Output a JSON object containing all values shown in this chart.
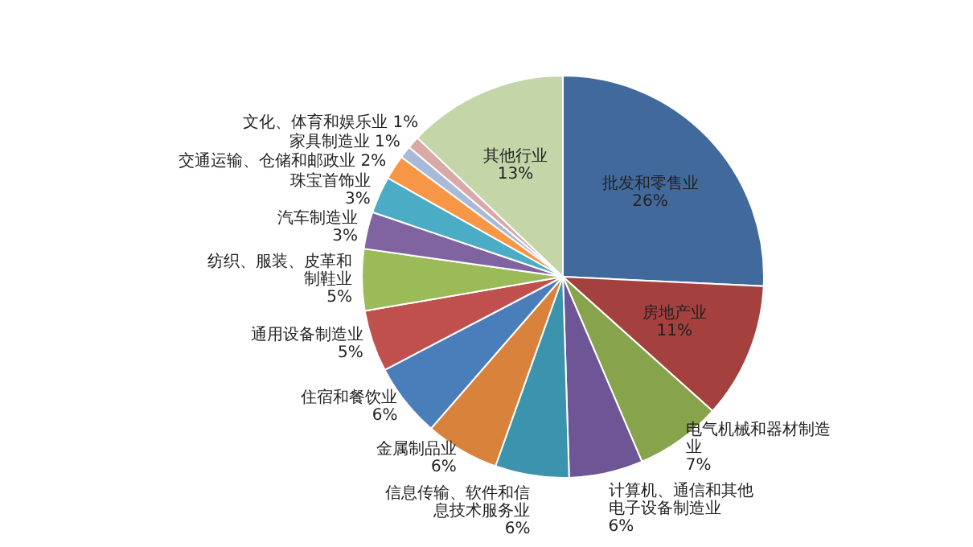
{
  "chart_data": {
    "type": "pie",
    "categories": [
      "批发和零售业",
      "房地产业",
      "电气机械和器材制造业",
      "计算机、通信和其他电子设备制造业",
      "信息传输、软件和信息技术服务业",
      "金属制品业",
      "住宿和餐饮业",
      "通用设备制造业",
      "纺织、服装、皮革和制鞋业",
      "汽车制造业",
      "珠宝首饰业",
      "交通运输、仓储和邮政业",
      "家具制造业",
      "文化、体育和娱乐业",
      "其他行业"
    ],
    "values": [
      26,
      11,
      7,
      6,
      6,
      6,
      6,
      5,
      5,
      3,
      3,
      2,
      1,
      1,
      13
    ],
    "value_labels": [
      "26%",
      "11%",
      "7%",
      "6%",
      "6%",
      "6%",
      "6%",
      "5%",
      "5%",
      "3%",
      "3%",
      "2%",
      "1%",
      "1%",
      "13%"
    ],
    "colors": [
      "#41699b",
      "#a4403d",
      "#87a34c",
      "#6e5595",
      "#3b93ad",
      "#d9823b",
      "#4a7ebb",
      "#c0504d",
      "#9bbb59",
      "#8064a2",
      "#4bacc6",
      "#f79646",
      "#a9b9d8",
      "#d9a9a8",
      "#c4d5a8"
    ],
    "legend": false
  }
}
